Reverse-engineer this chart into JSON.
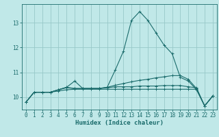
{
  "title": "",
  "xlabel": "Humidex (Indice chaleur)",
  "ylabel": "",
  "bg_color": "#c0e8e8",
  "grid_color": "#98c8c8",
  "line_color": "#1a6b6b",
  "x_values": [
    0,
    1,
    2,
    3,
    4,
    5,
    6,
    7,
    8,
    9,
    10,
    11,
    12,
    13,
    14,
    15,
    16,
    17,
    18,
    19,
    20,
    21,
    22,
    23
  ],
  "lines": [
    [
      9.8,
      10.2,
      10.2,
      10.2,
      10.3,
      10.4,
      10.65,
      10.35,
      10.35,
      10.35,
      10.4,
      11.1,
      11.85,
      13.1,
      13.45,
      13.1,
      12.6,
      12.1,
      11.75,
      10.8,
      10.65,
      10.3,
      9.65,
      10.05
    ],
    [
      9.8,
      10.2,
      10.2,
      10.2,
      10.3,
      10.4,
      10.35,
      10.35,
      10.35,
      10.35,
      10.4,
      10.48,
      10.55,
      10.62,
      10.68,
      10.72,
      10.78,
      10.82,
      10.87,
      10.87,
      10.72,
      10.35,
      9.65,
      10.05
    ],
    [
      9.8,
      10.2,
      10.2,
      10.2,
      10.3,
      10.38,
      10.35,
      10.35,
      10.35,
      10.35,
      10.38,
      10.42,
      10.42,
      10.42,
      10.45,
      10.45,
      10.45,
      10.47,
      10.47,
      10.47,
      10.42,
      10.38,
      9.65,
      10.05
    ],
    [
      9.8,
      10.2,
      10.2,
      10.2,
      10.25,
      10.3,
      10.32,
      10.32,
      10.32,
      10.32,
      10.32,
      10.32,
      10.32,
      10.32,
      10.32,
      10.32,
      10.32,
      10.32,
      10.32,
      10.32,
      10.32,
      10.32,
      9.65,
      10.05
    ]
  ],
  "ylim": [
    9.5,
    13.75
  ],
  "yticks": [
    10,
    11,
    12,
    13
  ],
  "xticks": [
    0,
    1,
    2,
    3,
    4,
    5,
    6,
    7,
    8,
    9,
    10,
    11,
    12,
    13,
    14,
    15,
    16,
    17,
    18,
    19,
    20,
    21,
    22,
    23
  ]
}
